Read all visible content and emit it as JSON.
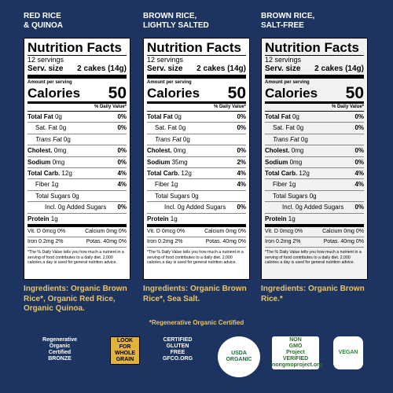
{
  "panels": [
    {
      "heading": [
        "RED RICE",
        "& QUINOA"
      ],
      "title": "Nutrition Facts",
      "servings": "12 servings",
      "serv_label": "Serv. size",
      "serv_value": "2 cakes (14g)",
      "amount": "Amount per serving",
      "calories_label": "Calories",
      "calories": "50",
      "dv_header": "% Daily Value*",
      "rows": [
        [
          "Total Fat",
          "0g",
          "0%"
        ],
        [
          "Sat. Fat",
          "0g",
          "0%"
        ],
        [
          "Trans Fat",
          "0g",
          ""
        ],
        [
          "Cholest.",
          "0mg",
          "0%"
        ],
        [
          "Sodium",
          "0mg",
          "0%"
        ],
        [
          "Total Carb.",
          "12g",
          "4%"
        ],
        [
          "Fiber",
          "1g",
          "4%"
        ],
        [
          "Total Sugars",
          "0g",
          ""
        ],
        [
          "Incl. 0g Added Sugars",
          "",
          "0%"
        ],
        [
          "Protein",
          "1g",
          ""
        ]
      ],
      "vitamins": [
        [
          "Vit. D 0mcg 0%",
          "Calcium 0mg 0%"
        ],
        [
          "Iron 0.2mg 2%",
          "Potas. 40mg 0%"
        ]
      ],
      "footnote": "*The % Daily Value tells you how much a nutrient in a serving of food contributes to a daily diet. 2,000 calories a day is used for general nutrition advice.",
      "ingredients": "Ingredients: Organic Brown Rice*, Organic Red Rice, Organic Quinoa."
    },
    {
      "heading": [
        "BROWN RICE,",
        "LIGHTLY SALTED"
      ],
      "title": "Nutrition Facts",
      "servings": "12 servings",
      "serv_label": "Serv. size",
      "serv_value": "2 cakes (14g)",
      "amount": "Amount per serving",
      "calories_label": "Calories",
      "calories": "50",
      "dv_header": "% Daily Value*",
      "rows": [
        [
          "Total Fat",
          "0g",
          "0%"
        ],
        [
          "Sat. Fat",
          "0g",
          "0%"
        ],
        [
          "Trans Fat",
          "0g",
          ""
        ],
        [
          "Cholest.",
          "0mg",
          "0%"
        ],
        [
          "Sodium",
          "35mg",
          "2%"
        ],
        [
          "Total Carb.",
          "12g",
          "4%"
        ],
        [
          "Fiber",
          "1g",
          "4%"
        ],
        [
          "Total Sugars",
          "0g",
          ""
        ],
        [
          "Incl. 0g Added Sugars",
          "",
          "0%"
        ],
        [
          "Protein",
          "1g",
          ""
        ]
      ],
      "vitamins": [
        [
          "Vit. D 0mcg 0%",
          "Calcium 0mg 0%"
        ],
        [
          "Iron 0.2mg 2%",
          "Potas. 40mg 0%"
        ]
      ],
      "footnote": "*The % Daily Value tells you how much a nutrient in a serving of food contributes to a daily diet. 2,000 calories a day is used for general nutrition advice.",
      "ingredients": "Ingredients: Organic Brown Rice*, Sea Salt."
    },
    {
      "heading": [
        "BROWN RICE,",
        "SALT-FREE"
      ],
      "title": "Nutrition Facts",
      "servings": "12 servings",
      "serv_label": "Serv. size",
      "serv_value": "2 cakes (14g)",
      "amount": "Amount per serving",
      "calories_label": "Calories",
      "calories": "50",
      "dv_header": "% Daily Value*",
      "rows": [
        [
          "Total Fat",
          "0g",
          "0%"
        ],
        [
          "Sat. Fat",
          "0g",
          "0%"
        ],
        [
          "Trans Fat",
          "0g",
          ""
        ],
        [
          "Cholest.",
          "0mg",
          "0%"
        ],
        [
          "Sodium",
          "0mg",
          "0%"
        ],
        [
          "Total Carb.",
          "12g",
          "4%"
        ],
        [
          "Fiber",
          "1g",
          "4%"
        ],
        [
          "Total Sugars",
          "0g",
          ""
        ],
        [
          "Incl. 0g Added Sugars",
          "",
          "0%"
        ],
        [
          "Protein",
          "1g",
          ""
        ]
      ],
      "vitamins": [
        [
          "Vit. D 0mcg 0%",
          "Calcium 0mg 0%"
        ],
        [
          "Iron 0.2mg 2%",
          "Potas. 40mg 0%"
        ]
      ],
      "footnote": "*The % Daily Value tells you how much a nutrient in a serving of food contributes to a daily diet. 2,000 calories a day is used for general nutrition advice.",
      "ingredients": "Ingredients: Organic Brown Rice.*"
    }
  ],
  "certification_note": "*Regenerative Organic Certified",
  "logos": {
    "roc": [
      "Regenerative",
      "Organic",
      "Certified",
      "BRONZE"
    ],
    "whole_grain": [
      "LOOK FOR",
      "WHOLE",
      "GRAIN"
    ],
    "gluten_free": [
      "CERTIFIED",
      "GLUTEN",
      "FREE",
      "GFCO.ORG"
    ],
    "usda": [
      "USDA",
      "ORGANIC"
    ],
    "non_gmo": [
      "NON",
      "GMO",
      "Project",
      "VERIFIED",
      "nongmoproject.org"
    ],
    "vegan": [
      "VEGAN"
    ]
  }
}
